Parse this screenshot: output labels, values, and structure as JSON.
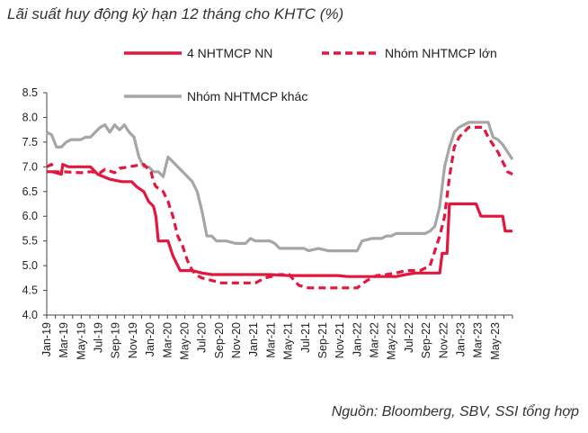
{
  "title": "Lãi suất huy động kỳ hạn 12 tháng cho KHTC (%)",
  "source": "Nguồn:  Bloomberg, SBV, SSI tổng hợp",
  "chart_data": {
    "type": "line",
    "title": "Lãi suất huy động kỳ hạn 12 tháng cho KHTC (%)",
    "xlabel": "",
    "ylabel": "",
    "ylim": [
      4.0,
      8.5
    ],
    "yticks": [
      "4.0",
      "4.5",
      "5.0",
      "5.5",
      "6.0",
      "6.5",
      "7.0",
      "7.5",
      "8.0",
      "8.5"
    ],
    "x_range": [
      "Jan-19",
      "Jul-23"
    ],
    "categories": [
      "Jan-19",
      "Mar-19",
      "May-19",
      "Jul-19",
      "Sep-19",
      "Nov-19",
      "Jan-20",
      "Mar-20",
      "May-20",
      "Jul-20",
      "Sep-20",
      "Nov-20",
      "Jan-21",
      "Mar-21",
      "May-21",
      "Jul-21",
      "Sep-21",
      "Nov-21",
      "Jan-22",
      "Mar-22",
      "May-22",
      "Jul-22",
      "Sep-22",
      "Nov-22",
      "Jan-23",
      "Mar-23",
      "May-23"
    ],
    "grid": false,
    "legend_position": "top",
    "series": [
      {
        "name": "4 NHTMCP NN",
        "color": "#e3173e",
        "style": "solid",
        "points": [
          [
            0,
            6.9
          ],
          [
            1.2,
            6.9
          ],
          [
            3,
            6.85
          ],
          [
            3.3,
            7.05
          ],
          [
            4.5,
            7.0
          ],
          [
            9,
            7.0
          ],
          [
            10.5,
            6.85
          ],
          [
            13,
            6.75
          ],
          [
            15.5,
            6.7
          ],
          [
            17.5,
            6.7
          ],
          [
            18.5,
            6.6
          ],
          [
            20,
            6.5
          ],
          [
            21,
            6.3
          ],
          [
            22,
            6.2
          ],
          [
            22.5,
            6.0
          ],
          [
            23,
            5.5
          ],
          [
            25,
            5.5
          ],
          [
            26,
            5.2
          ],
          [
            27,
            5.0
          ],
          [
            27.5,
            4.9
          ],
          [
            30,
            4.9
          ],
          [
            32,
            4.85
          ],
          [
            34,
            4.82
          ],
          [
            46,
            4.82
          ],
          [
            50,
            4.8
          ],
          [
            60,
            4.8
          ],
          [
            62,
            4.78
          ],
          [
            72,
            4.78
          ],
          [
            74,
            4.82
          ],
          [
            76,
            4.85
          ],
          [
            81,
            4.85
          ],
          [
            81.5,
            5.25
          ],
          [
            82.5,
            5.25
          ],
          [
            83,
            6.25
          ],
          [
            88.5,
            6.25
          ],
          [
            89.5,
            6.0
          ],
          [
            94,
            6.0
          ],
          [
            94.5,
            5.7
          ],
          [
            96,
            5.7
          ]
        ]
      },
      {
        "name": "Nhóm NHTMCP lớn",
        "color": "#e3173e",
        "style": "dashed",
        "points": [
          [
            0,
            7.0
          ],
          [
            1,
            7.05
          ],
          [
            1.5,
            6.9
          ],
          [
            3.5,
            6.9
          ],
          [
            7,
            6.88
          ],
          [
            9,
            6.9
          ],
          [
            11,
            6.88
          ],
          [
            12,
            6.95
          ],
          [
            14,
            6.88
          ],
          [
            15,
            6.97
          ],
          [
            20,
            7.05
          ],
          [
            21.5,
            6.9
          ],
          [
            22,
            6.7
          ],
          [
            22.5,
            6.6
          ],
          [
            24,
            6.5
          ],
          [
            25,
            6.3
          ],
          [
            26,
            6.0
          ],
          [
            27,
            5.6
          ],
          [
            28,
            5.4
          ],
          [
            29,
            5.1
          ],
          [
            30,
            4.9
          ],
          [
            31,
            4.8
          ],
          [
            32,
            4.75
          ],
          [
            34,
            4.7
          ],
          [
            36,
            4.65
          ],
          [
            43,
            4.65
          ],
          [
            45,
            4.75
          ],
          [
            47,
            4.8
          ],
          [
            48,
            4.82
          ],
          [
            50,
            4.82
          ],
          [
            51,
            4.7
          ],
          [
            52,
            4.6
          ],
          [
            54,
            4.55
          ],
          [
            64,
            4.55
          ],
          [
            66,
            4.7
          ],
          [
            68,
            4.8
          ],
          [
            70,
            4.82
          ],
          [
            72,
            4.85
          ],
          [
            74,
            4.9
          ],
          [
            77,
            4.9
          ],
          [
            79,
            5.0
          ],
          [
            80,
            5.3
          ],
          [
            81,
            5.6
          ],
          [
            82,
            6.0
          ],
          [
            83,
            6.8
          ],
          [
            84,
            7.4
          ],
          [
            85,
            7.6
          ],
          [
            86,
            7.7
          ],
          [
            87,
            7.8
          ],
          [
            90,
            7.8
          ],
          [
            91,
            7.6
          ],
          [
            93,
            7.3
          ],
          [
            94,
            7.1
          ],
          [
            95,
            6.9
          ],
          [
            96,
            6.85
          ]
        ]
      },
      {
        "name": "Nhóm NHTMCP khác",
        "color": "#a6a6a6",
        "style": "solid",
        "points": [
          [
            0,
            7.7
          ],
          [
            1,
            7.65
          ],
          [
            2,
            7.4
          ],
          [
            3,
            7.4
          ],
          [
            4,
            7.5
          ],
          [
            5,
            7.55
          ],
          [
            7,
            7.55
          ],
          [
            8,
            7.6
          ],
          [
            9,
            7.6
          ],
          [
            10,
            7.7
          ],
          [
            11,
            7.8
          ],
          [
            12,
            7.85
          ],
          [
            13,
            7.7
          ],
          [
            14,
            7.85
          ],
          [
            15,
            7.75
          ],
          [
            16,
            7.85
          ],
          [
            17,
            7.7
          ],
          [
            18,
            7.6
          ],
          [
            19,
            7.2
          ],
          [
            20,
            7.0
          ],
          [
            21,
            7.0
          ],
          [
            22,
            6.9
          ],
          [
            23,
            6.9
          ],
          [
            24,
            6.8
          ],
          [
            25,
            7.2
          ],
          [
            26,
            7.1
          ],
          [
            27,
            7.0
          ],
          [
            28,
            6.9
          ],
          [
            29,
            6.8
          ],
          [
            30,
            6.7
          ],
          [
            31,
            6.5
          ],
          [
            32,
            6.1
          ],
          [
            33,
            5.6
          ],
          [
            34,
            5.6
          ],
          [
            35,
            5.5
          ],
          [
            37,
            5.5
          ],
          [
            39,
            5.45
          ],
          [
            41,
            5.45
          ],
          [
            42,
            5.55
          ],
          [
            43,
            5.5
          ],
          [
            46,
            5.5
          ],
          [
            47,
            5.45
          ],
          [
            48,
            5.35
          ],
          [
            50,
            5.35
          ],
          [
            53,
            5.35
          ],
          [
            54,
            5.3
          ],
          [
            56,
            5.35
          ],
          [
            58,
            5.3
          ],
          [
            64,
            5.3
          ],
          [
            65,
            5.5
          ],
          [
            67,
            5.55
          ],
          [
            69,
            5.55
          ],
          [
            70,
            5.6
          ],
          [
            71,
            5.6
          ],
          [
            72,
            5.65
          ],
          [
            78,
            5.65
          ],
          [
            79,
            5.7
          ],
          [
            80,
            5.8
          ],
          [
            81,
            6.2
          ],
          [
            82,
            7.0
          ],
          [
            83,
            7.4
          ],
          [
            84,
            7.7
          ],
          [
            85,
            7.8
          ],
          [
            86,
            7.85
          ],
          [
            87,
            7.9
          ],
          [
            91,
            7.9
          ],
          [
            92,
            7.6
          ],
          [
            93,
            7.55
          ],
          [
            94,
            7.45
          ],
          [
            95,
            7.3
          ],
          [
            96,
            7.15
          ]
        ]
      }
    ]
  }
}
